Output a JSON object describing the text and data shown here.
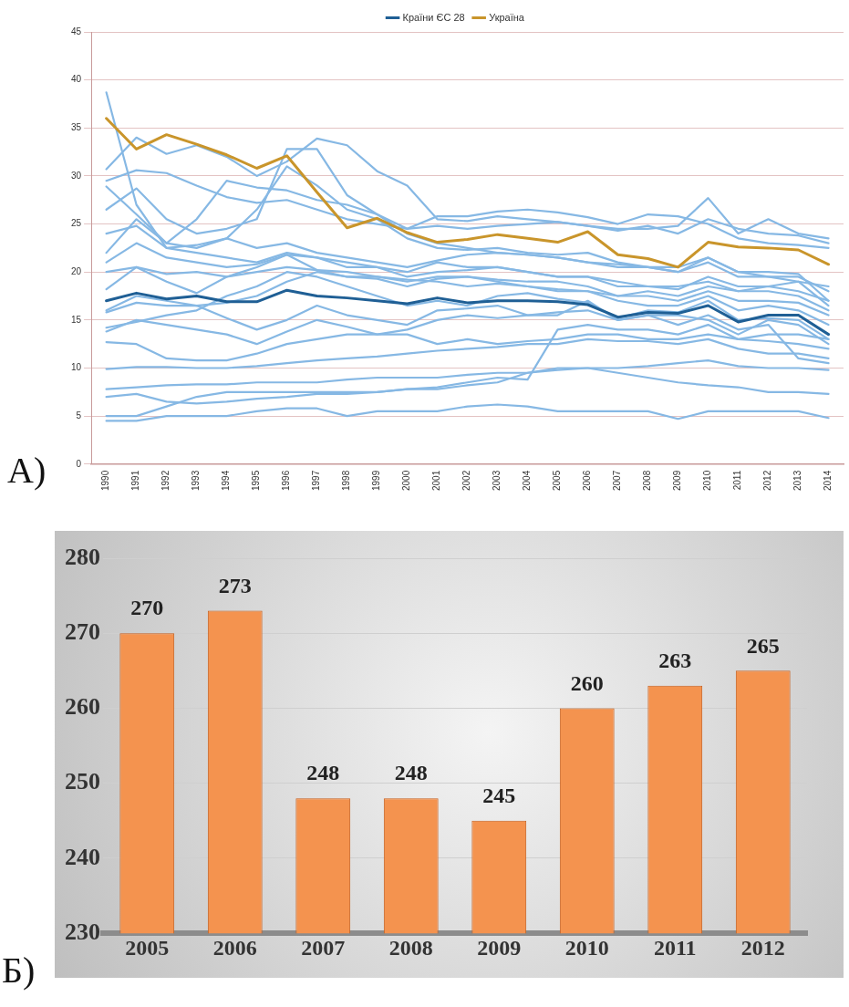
{
  "chart_data": [
    {
      "type": "line",
      "categories": [
        "1990",
        "1991",
        "1992",
        "1993",
        "1994",
        "1995",
        "1996",
        "1997",
        "1998",
        "1999",
        "2000",
        "2001",
        "2002",
        "2003",
        "2004",
        "2005",
        "2006",
        "2007",
        "2008",
        "2009",
        "2010",
        "2011",
        "2012",
        "2013",
        "2014"
      ],
      "ylim": [
        0,
        45
      ],
      "yticks": [
        0,
        5,
        10,
        15,
        20,
        25,
        30,
        35,
        40,
        45
      ],
      "grid": "y",
      "legend": "top",
      "marker": "none",
      "line_style": "solid",
      "annotations": [
        "А)"
      ],
      "series": [
        {
          "color": "#86b8e4",
          "values": [
            38.7,
            27,
            22.5,
            22,
            21.5,
            21,
            22,
            21.5,
            21,
            20.5,
            20,
            21,
            20.5,
            20.5,
            20,
            19.5,
            19.5,
            19,
            18.5,
            18.5,
            19,
            18,
            18.5,
            18,
            17
          ]
        },
        {
          "color": "#86b8e4",
          "values": [
            30.7,
            34,
            32.3,
            33.2,
            32,
            30,
            31.5,
            33.9,
            33.2,
            30.5,
            29,
            25.5,
            25.3,
            25.8,
            25.5,
            25.2,
            24.8,
            24.5,
            24.5,
            24.8,
            27.7,
            24,
            25.5,
            24,
            23.5
          ]
        },
        {
          "color": "#86b8e4",
          "values": [
            29.5,
            30.6,
            30.3,
            29,
            27.8,
            27.2,
            27.5,
            26.5,
            25.5,
            25,
            24.5,
            24.8,
            24.5,
            24.8,
            25,
            25.2,
            24.8,
            24.3,
            24.8,
            24,
            25.5,
            24.5,
            24,
            23.8,
            23
          ]
        },
        {
          "color": "#86b8e4",
          "values": [
            28.9,
            26,
            23,
            25.5,
            29.5,
            28.8,
            28.5,
            27.5,
            27,
            26,
            24.5,
            25.8,
            25.8,
            26.3,
            26.5,
            26.2,
            25.7,
            25,
            26,
            25.8,
            25,
            23.5,
            23,
            22.8,
            22.5
          ]
        },
        {
          "color": "#86b8e4",
          "values": [
            26.5,
            28.7,
            25.5,
            24,
            24.5,
            25.5,
            32.8,
            32.8,
            28,
            26,
            24,
            23,
            22.5,
            22,
            21.8,
            21.5,
            21,
            20.8,
            20.5,
            20.5,
            21.5,
            20,
            19.5,
            19.5,
            18
          ]
        },
        {
          "color": "#86b8e4",
          "values": [
            24,
            24.8,
            22.5,
            22.8,
            23.5,
            22.5,
            23,
            22,
            21.5,
            21,
            20.5,
            21.2,
            21.8,
            22,
            21.8,
            21.5,
            21,
            20.5,
            20.5,
            20,
            21,
            19.5,
            19.5,
            19,
            18.5
          ]
        },
        {
          "color": "#86b8e4",
          "values": [
            22,
            25.5,
            23,
            22.5,
            23.5,
            26.5,
            31,
            29,
            26.5,
            25.5,
            23.5,
            22.5,
            22.3,
            22.5,
            22,
            21.8,
            22,
            21,
            20.5,
            20,
            21.5,
            20,
            20,
            19.8,
            17
          ]
        },
        {
          "color": "#86b8e4",
          "values": [
            21,
            23,
            21.5,
            21,
            20.5,
            20.8,
            21.8,
            21.5,
            20.5,
            20.5,
            19.5,
            20,
            20.2,
            20.5,
            20,
            19.5,
            19.5,
            18.5,
            18.5,
            18.2,
            19.5,
            18.5,
            18.5,
            19,
            16.5
          ]
        },
        {
          "color": "#86b8e4",
          "values": [
            20,
            20.5,
            19.8,
            20,
            19.5,
            20,
            20.5,
            20.2,
            20,
            19.5,
            19,
            19.5,
            19.5,
            19.2,
            19,
            19,
            18.5,
            17.5,
            18,
            17.5,
            18.5,
            18,
            18,
            17.5,
            16
          ]
        },
        {
          "color": "#86b8e4",
          "values": [
            18.2,
            20.5,
            19,
            17.8,
            19.5,
            20.5,
            21.8,
            20.2,
            19.5,
            19.5,
            19.2,
            19,
            18.5,
            18.8,
            18.5,
            18.2,
            18,
            17.5,
            17.5,
            17,
            18,
            17,
            17,
            16.8,
            15.5
          ]
        },
        {
          "color": "#86b8e4",
          "values": [
            16,
            17.5,
            17,
            16.5,
            16.8,
            17.5,
            19,
            20,
            19.5,
            19.3,
            18.5,
            19.3,
            19.5,
            19,
            18.5,
            18,
            18,
            17,
            16.5,
            16.5,
            17.5,
            16,
            16.5,
            16,
            14.5
          ]
        },
        {
          "color": "#86b8e4",
          "values": [
            15.8,
            16.8,
            16.5,
            16.5,
            15.2,
            14,
            15,
            16.5,
            15.5,
            15,
            14.5,
            16,
            16.2,
            16.5,
            15.5,
            15.5,
            17,
            15,
            15.5,
            15.5,
            15,
            13.5,
            15,
            14.5,
            12.5
          ]
        },
        {
          "color": "#86b8e4",
          "values": [
            14.2,
            14.8,
            15.5,
            16,
            17.5,
            18.5,
            20,
            19.5,
            18.5,
            17.5,
            16.5,
            17,
            16.5,
            17.5,
            17.8,
            17.2,
            16.8,
            15.2,
            16,
            15.8,
            17,
            15,
            15.2,
            15,
            13
          ]
        },
        {
          "color": "#86b8e4",
          "values": [
            13.8,
            15,
            14.5,
            14,
            13.5,
            12.5,
            13.8,
            15,
            14.3,
            13.5,
            14,
            15,
            15.5,
            15.2,
            15.5,
            15.8,
            16,
            15,
            15.5,
            14.5,
            15.5,
            14,
            14.5,
            11,
            10.5
          ]
        },
        {
          "color": "#86b8e4",
          "values": [
            12.7,
            12.5,
            11,
            10.8,
            10.8,
            11.5,
            12.5,
            13,
            13.5,
            13.5,
            13.5,
            12.5,
            13,
            12.5,
            12.8,
            13,
            13.5,
            13.5,
            13,
            13,
            13.5,
            13,
            12.8,
            12.5,
            12
          ]
        },
        {
          "color": "#86b8e4",
          "values": [
            9.9,
            10.1,
            10.1,
            10,
            10,
            10.2,
            10.5,
            10.8,
            11,
            11.2,
            11.5,
            11.8,
            12,
            12.2,
            12.5,
            12.5,
            13,
            12.8,
            12.8,
            12.5,
            13,
            12,
            11.5,
            11.5,
            11
          ]
        },
        {
          "color": "#86b8e4",
          "values": [
            7.8,
            8,
            8.2,
            8.3,
            8.3,
            8.5,
            8.5,
            8.5,
            8.8,
            9,
            9,
            9,
            9.3,
            9.5,
            9.5,
            9.8,
            10,
            10,
            10.2,
            10.5,
            10.8,
            10.2,
            10,
            10,
            9.8
          ]
        },
        {
          "color": "#86b8e4",
          "values": [
            7,
            7.3,
            6.5,
            6.3,
            6.5,
            6.8,
            7,
            7.3,
            7.3,
            7.5,
            7.8,
            8,
            8.5,
            9,
            8.8,
            14,
            14.5,
            14,
            14,
            13.5,
            14.5,
            13,
            13.5,
            13.5,
            13
          ]
        },
        {
          "color": "#86b8e4",
          "values": [
            5,
            5,
            6,
            7,
            7.5,
            7.5,
            7.5,
            7.5,
            7.5,
            7.5,
            7.8,
            7.8,
            8.2,
            8.5,
            9.5,
            10,
            10,
            9.5,
            9,
            8.5,
            8.2,
            8,
            7.5,
            7.5,
            7.3
          ]
        },
        {
          "color": "#86b8e4",
          "values": [
            4.5,
            4.5,
            5,
            5,
            5,
            5.5,
            5.8,
            5.8,
            5,
            5.5,
            5.5,
            5.5,
            6,
            6.2,
            6,
            5.5,
            5.5,
            5.5,
            5.5,
            4.7,
            5.5,
            5.5,
            5.5,
            5.5,
            4.8
          ]
        },
        {
          "name": "Країни ЄС 28",
          "color": "#1f5f95",
          "values": [
            17,
            17.8,
            17.2,
            17.5,
            16.9,
            16.9,
            18.1,
            17.5,
            17.3,
            17,
            16.7,
            17.3,
            16.8,
            17,
            17,
            16.9,
            16.6,
            15.3,
            15.8,
            15.7,
            16.5,
            14.8,
            15.5,
            15.5,
            13.5
          ]
        },
        {
          "name": "Україна",
          "color": "#c9952b",
          "values": [
            36,
            32.8,
            34.3,
            33.3,
            32.2,
            30.8,
            32.1,
            28.3,
            24.6,
            25.6,
            24.1,
            23.1,
            23.4,
            23.9,
            23.5,
            23.1,
            24.2,
            21.8,
            21.4,
            20.5,
            23.1,
            22.6,
            22.5,
            22.3,
            20.8
          ]
        }
      ]
    },
    {
      "type": "bar",
      "categories": [
        "2005",
        "2006",
        "2007",
        "2008",
        "2009",
        "2010",
        "2011",
        "2012"
      ],
      "values": [
        270,
        273,
        248,
        248,
        245,
        260,
        263,
        265
      ],
      "color": "#f4934f",
      "ylim": [
        230,
        280
      ],
      "yticks": [
        230,
        240,
        250,
        260,
        270,
        280
      ],
      "grid": "y",
      "data_labels": true,
      "annotations": [
        "Б)"
      ]
    }
  ]
}
